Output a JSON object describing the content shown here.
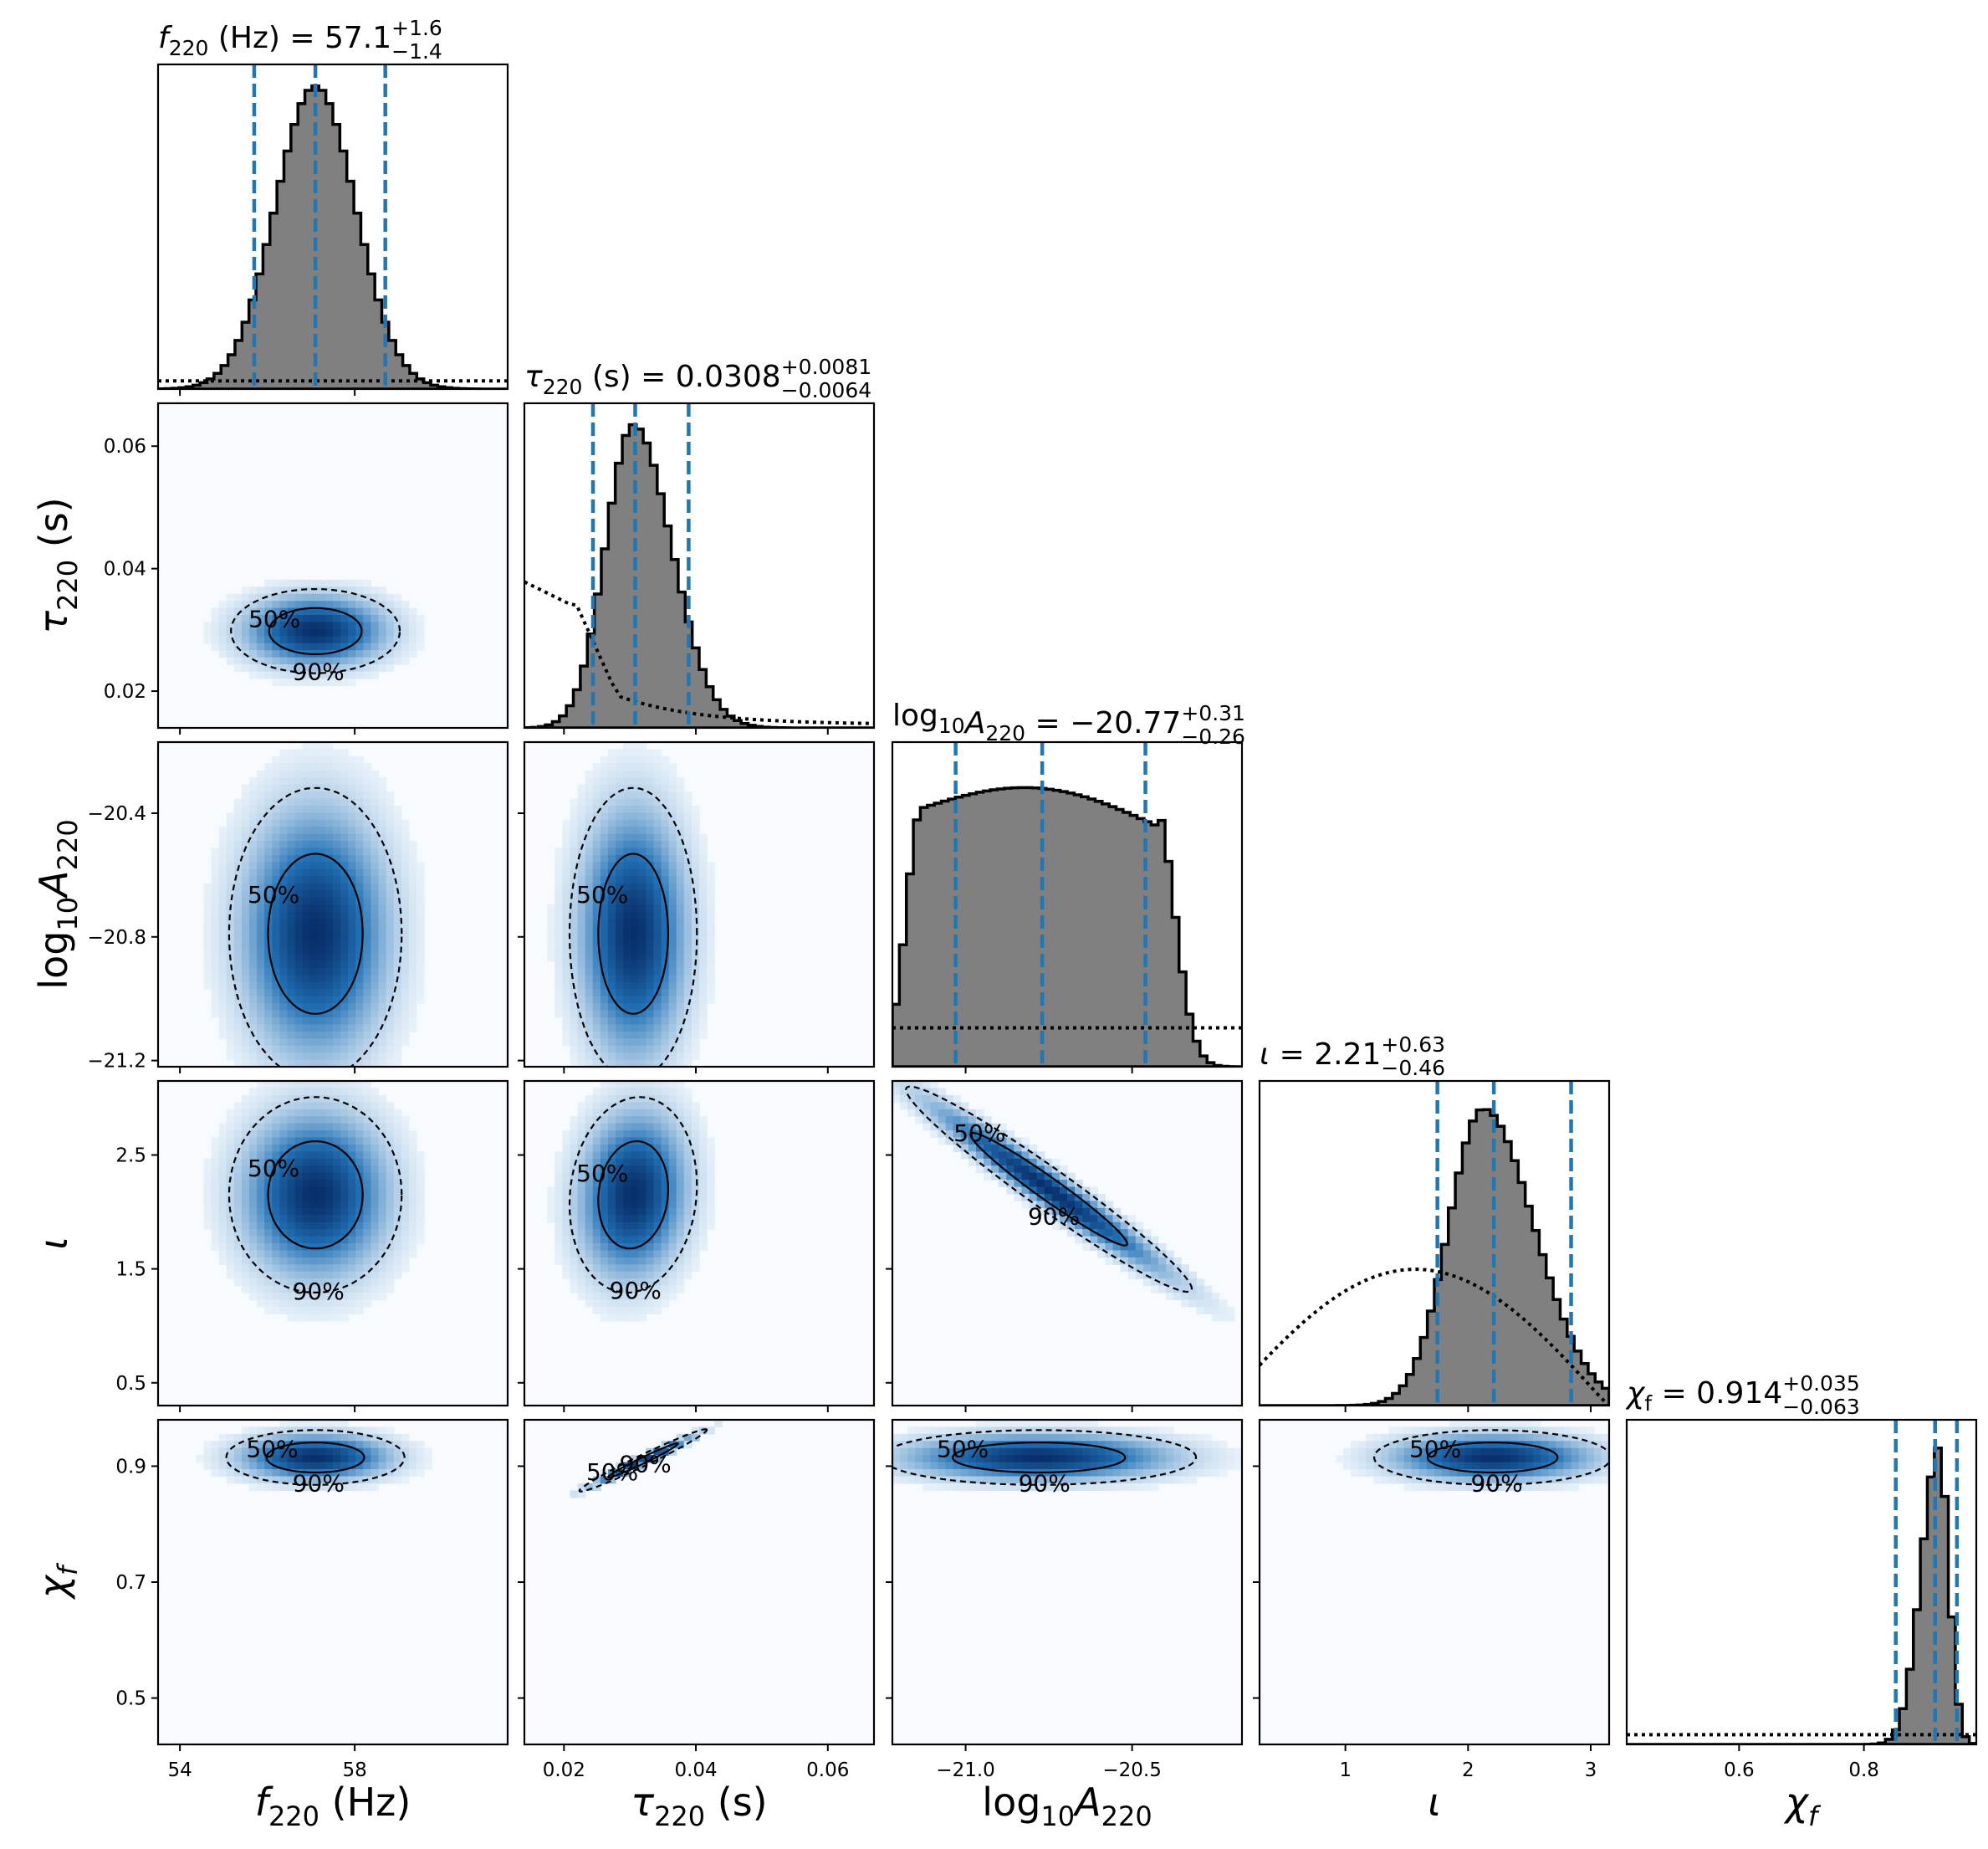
{
  "chart_data": {
    "type": "corner",
    "parameters": [
      {
        "key": "f220",
        "label_sym": "f",
        "label_sub": "220",
        "label_rest": " (Hz)",
        "label_italic": true,
        "range": [
          53.5,
          61.5
        ],
        "ticks": [
          54,
          58
        ],
        "tick_labels": [
          "54",
          "58"
        ],
        "title_prefix_sym": "f",
        "title_prefix_sub": "220",
        "title_prefix_rest": " (Hz) = ",
        "median": 57.1,
        "plus": "+1.6",
        "minus": "−1.4",
        "median_text": "57.1",
        "quantiles": [
          55.7,
          57.1,
          58.7
        ],
        "posterior_hist": {
          "type": "gaussian",
          "mu": 57.1,
          "sigma": 0.92,
          "peak": 0.95
        },
        "prior_level": 0.025
      },
      {
        "key": "tau220",
        "label_sym": "τ",
        "label_sub": "220",
        "label_rest": " (s)",
        "label_italic": true,
        "range": [
          0.014,
          0.067
        ],
        "ticks": [
          0.02,
          0.04,
          0.06
        ],
        "tick_labels": [
          "0.02",
          "0.04",
          "0.06"
        ],
        "title_prefix_sym": "τ",
        "title_prefix_sub": "220",
        "title_prefix_rest": " (s) = ",
        "median": 0.0308,
        "plus": "+0.0081",
        "minus": "−0.0064",
        "median_text": "0.0308",
        "quantiles": [
          0.0244,
          0.0308,
          0.0389
        ],
        "posterior_hist": {
          "type": "skew",
          "mu": 0.0305,
          "sigma_left": 0.0042,
          "sigma_right": 0.0058,
          "peak": 0.95
        },
        "prior_level": 0.45
      },
      {
        "key": "logA",
        "label_sym": "log",
        "label_sub": "10",
        "label_rest": "A₂₂₀",
        "label_italic": false,
        "range": [
          -21.22,
          -20.17
        ],
        "ticks": [
          -21.0,
          -20.5
        ],
        "tick_labels": [
          "−21.0",
          "−20.5"
        ],
        "title_prefix_sym": "log",
        "title_prefix_sub": "10",
        "title_prefix_rest": "A₂₂₀ = ",
        "median": -20.77,
        "plus": "+0.31",
        "minus": "−0.26",
        "median_text": "−20.77",
        "quantiles": [
          -21.03,
          -20.77,
          -20.46
        ],
        "posterior_hist": {
          "type": "plateau",
          "lo": -21.03,
          "hi": -20.46,
          "peak": 0.9
        },
        "prior_level": 0.12
      },
      {
        "key": "iota",
        "label_sym": "ι",
        "label_sub": "",
        "label_rest": "",
        "label_italic": true,
        "range": [
          0.3,
          3.15
        ],
        "ticks": [
          1,
          2,
          3
        ],
        "tick_labels": [
          "1",
          "2",
          "3"
        ],
        "title_prefix_sym": "ι",
        "title_prefix_sub": "",
        "title_prefix_rest": " = ",
        "median": 2.21,
        "plus": "+0.63",
        "minus": "−0.46",
        "median_text": "2.21",
        "quantiles": [
          1.75,
          2.21,
          2.84
        ],
        "posterior_hist": {
          "type": "skew",
          "mu": 2.12,
          "sigma_left": 0.28,
          "sigma_right": 0.42,
          "peak": 0.93
        },
        "prior_level": 0.4
      },
      {
        "key": "chif",
        "label_sym": "χ",
        "label_sub": "f",
        "label_rest": "",
        "label_italic": true,
        "range": [
          0.42,
          0.98
        ],
        "ticks": [
          0.6,
          0.8
        ],
        "tick_labels": [
          "0.6",
          "0.8"
        ],
        "title_prefix_sym": "χ",
        "title_prefix_sub": "f",
        "title_prefix_rest": " = ",
        "median": 0.914,
        "plus": "+0.035",
        "minus": "−0.063",
        "median_text": "0.914",
        "quantiles": [
          0.851,
          0.914,
          0.949
        ],
        "posterior_hist": {
          "type": "skew",
          "mu": 0.92,
          "sigma_left": 0.028,
          "sigma_right": 0.016,
          "peak": 0.93
        },
        "prior_level": 0.03
      }
    ],
    "y_axis_ranges": {
      "tau220": [
        0.014,
        0.067
      ],
      "logA": [
        -21.22,
        -20.17
      ],
      "iota": [
        0.3,
        3.15
      ],
      "chif": [
        0.42,
        0.98
      ]
    },
    "y_axis_ticks": {
      "tau220": {
        "values": [
          0.02,
          0.04,
          0.06
        ],
        "labels": [
          "0.02",
          "0.04",
          "0.06"
        ]
      },
      "logA": {
        "values": [
          -21.2,
          -20.8,
          -20.4
        ],
        "labels": [
          "−21.2",
          "−20.8",
          "−20.4"
        ]
      },
      "iota": {
        "values": [
          0.5,
          1.5,
          2.5
        ],
        "labels": [
          "0.5",
          "1.5",
          "2.5"
        ]
      },
      "chif": {
        "values": [
          0.5,
          0.7,
          0.9
        ],
        "labels": [
          "0.5",
          "0.7",
          "0.9"
        ]
      }
    },
    "contour_levels": [
      "50%",
      "90%"
    ],
    "joint_distributions": [
      {
        "x": "f220",
        "y": "tau220",
        "cx": 57.1,
        "cy": 0.0298,
        "sx": 0.9,
        "sy": 0.0032,
        "rho": 0.0
      },
      {
        "x": "f220",
        "y": "logA",
        "cx": 57.1,
        "cy": -20.79,
        "sx": 0.92,
        "sy": 0.22,
        "rho": 0.0
      },
      {
        "x": "tau220",
        "y": "logA",
        "cx": 0.0305,
        "cy": -20.79,
        "sx": 0.0045,
        "sy": 0.22,
        "rho": 0.0
      },
      {
        "x": "f220",
        "y": "iota",
        "cx": 57.1,
        "cy": 2.15,
        "sx": 0.92,
        "sy": 0.4,
        "rho": 0.0
      },
      {
        "x": "tau220",
        "y": "iota",
        "cx": 0.0305,
        "cy": 2.15,
        "sx": 0.0045,
        "sy": 0.4,
        "rho": 0.1
      },
      {
        "x": "logA",
        "y": "iota",
        "cx": -20.75,
        "cy": 2.2,
        "sx": 0.2,
        "sy": 0.42,
        "rho": -0.97
      },
      {
        "x": "f220",
        "y": "chif",
        "cx": 57.1,
        "cy": 0.915,
        "sx": 0.95,
        "sy": 0.022,
        "rho": 0.0
      },
      {
        "x": "tau220",
        "y": "chif",
        "cx": 0.032,
        "cy": 0.91,
        "sx": 0.0045,
        "sy": 0.025,
        "rho": 0.98
      },
      {
        "x": "logA",
        "y": "chif",
        "cx": -20.78,
        "cy": 0.915,
        "sx": 0.22,
        "sy": 0.022,
        "rho": 0.0
      },
      {
        "x": "iota",
        "y": "chif",
        "cx": 2.2,
        "cy": 0.915,
        "sx": 0.45,
        "sy": 0.022,
        "rho": 0.0
      }
    ],
    "colors": {
      "hist_fill": "#808080",
      "hist_edge": "#000000",
      "quantile_line": "#1f77b4",
      "density_low": "#f7fbff",
      "density_high": "#08306b",
      "contour": "#000000"
    }
  }
}
